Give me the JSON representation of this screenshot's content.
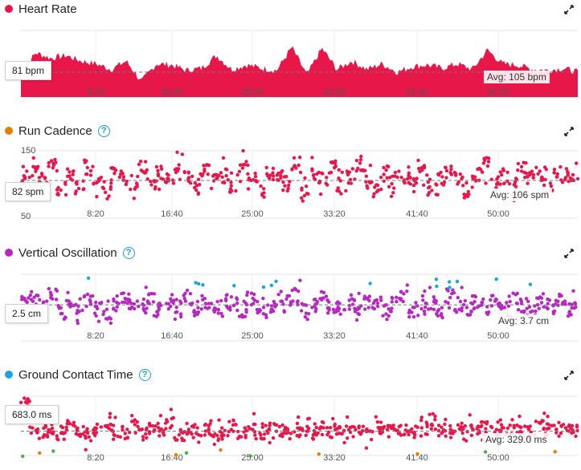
{
  "colors": {
    "heart_rate": "#e8174a",
    "run_cadence": "#e67e00",
    "vertical_oscillation": "#b628c0",
    "ground_contact_time": "#1aa6dc",
    "points_red": "#e8174a",
    "points_purple": "#b628c0",
    "points_blue": "#1aa6dc",
    "points_green": "#4caf50",
    "points_orange": "#e67e00",
    "help": "#1a9bd7"
  },
  "icons": {
    "help": "help-circle-icon",
    "expand": "expand-arrows-icon"
  },
  "x_ticks": [
    "8:20",
    "16:40",
    "25:00",
    "33:20",
    "41:40",
    "50:00"
  ],
  "panels": {
    "heart_rate": {
      "title": "Heart Rate",
      "current": "81 bpm",
      "avg": "Avg: 105 bpm"
    },
    "run_cadence": {
      "title": "Run Cadence",
      "current": "82 spm",
      "avg": "Avg: 106 spm",
      "y_top": "150",
      "y_bottom": "50"
    },
    "vertical_oscillation": {
      "title": "Vertical Oscillation",
      "current": "2.5 cm",
      "avg": "Avg: 3.7 cm"
    },
    "ground_contact_time": {
      "title": "Ground Contact Time",
      "current": "683.0 ms",
      "avg": "Avg: 329.0 ms"
    }
  },
  "chart_data": [
    {
      "type": "area",
      "title": "Heart Rate",
      "ylabel": "bpm",
      "x_unit": "elapsed time (mm:ss)",
      "avg": 105,
      "current": 81,
      "ylim": [
        60,
        180
      ],
      "x": [
        0,
        100,
        200,
        300,
        400,
        500,
        600,
        700,
        800,
        900,
        1000,
        1100,
        1200,
        1300,
        1400,
        1500,
        1600,
        1700,
        1800,
        1900,
        2000,
        2100,
        2200,
        2300,
        2400,
        2500,
        2600,
        2700,
        2800,
        2900,
        3000,
        3100,
        3200,
        3300,
        3400,
        3500,
        3600,
        3700
      ],
      "y": [
        105,
        140,
        130,
        135,
        125,
        120,
        110,
        125,
        88,
        120,
        118,
        108,
        112,
        135,
        110,
        118,
        112,
        108,
        150,
        100,
        148,
        110,
        125,
        110,
        120,
        105,
        115,
        118,
        112,
        120,
        110,
        145,
        120,
        118,
        110,
        108,
        112,
        105
      ]
    },
    {
      "type": "scatter",
      "title": "Run Cadence",
      "ylabel": "spm",
      "avg": 106,
      "current": 82,
      "ylim": [
        50,
        150
      ],
      "x": [
        0,
        60,
        120,
        180,
        240,
        300,
        360,
        420,
        480,
        540,
        600,
        660,
        720,
        780,
        840,
        900,
        960,
        1020,
        1080,
        1140,
        1200,
        1260,
        1320,
        1380,
        1440,
        1500,
        1560,
        1620,
        1680,
        1740,
        1800,
        1860,
        1920,
        1980,
        2040,
        2100,
        2160,
        2220,
        2280,
        2340,
        2400,
        2460,
        2520,
        2580,
        2640,
        2700,
        2760,
        2820,
        2880,
        2940,
        3000,
        3060,
        3120,
        3180,
        3240,
        3300,
        3360,
        3420,
        3480,
        3540,
        3600,
        3660
      ],
      "y": [
        110,
        120,
        105,
        130,
        95,
        115,
        100,
        125,
        108,
        90,
        118,
        112,
        102,
        128,
        98,
        116,
        104,
        122,
        110,
        94,
        120,
        106,
        114,
        100,
        124,
        108,
        96,
        118,
        112,
        102,
        130,
        92,
        116,
        106,
        122,
        98,
        112,
        126,
        104,
        90,
        118,
        108,
        114,
        100,
        124,
        96,
        110,
        120,
        106,
        94,
        116,
        128,
        102,
        112,
        98,
        122,
        108,
        118,
        100,
        114,
        110,
        106
      ]
    },
    {
      "type": "scatter",
      "title": "Vertical Oscillation",
      "ylabel": "cm",
      "avg": 3.7,
      "current": 2.5,
      "ylim": [
        1,
        6
      ],
      "x": [
        0,
        60,
        120,
        180,
        240,
        300,
        360,
        420,
        480,
        540,
        600,
        660,
        720,
        780,
        840,
        900,
        960,
        1020,
        1080,
        1140,
        1200,
        1260,
        1320,
        1380,
        1440,
        1500,
        1560,
        1620,
        1680,
        1740,
        1800,
        1860,
        1920,
        1980,
        2040,
        2100,
        2160,
        2220,
        2280,
        2340,
        2400,
        2460,
        2520,
        2580,
        2640,
        2700,
        2760,
        2820,
        2880,
        2940,
        3000,
        3060,
        3120,
        3180,
        3240,
        3300,
        3360,
        3420,
        3480,
        3540,
        3600,
        3660
      ],
      "y": [
        3.8,
        4.2,
        3.5,
        4.6,
        3.2,
        3.9,
        3.6,
        4.1,
        3.4,
        2.9,
        3.8,
        4.4,
        3.5,
        3.7,
        4.0,
        3.3,
        3.9,
        3.6,
        4.3,
        3.1,
        3.8,
        3.5,
        4.0,
        3.7,
        3.4,
        4.2,
        3.6,
        3.3,
        3.9,
        3.8,
        4.5,
        3.2,
        3.7,
        4.1,
        3.5,
        3.6,
        3.9,
        3.4,
        4.0,
        3.7,
        3.3,
        3.8,
        4.2,
        3.5,
        3.6,
        3.9,
        3.4,
        4.4,
        3.7,
        3.5,
        3.8,
        3.6,
        4.1,
        3.3,
        3.9,
        3.7,
        3.5,
        4.0,
        3.6,
        3.8,
        3.4,
        3.7
      ]
    },
    {
      "type": "scatter",
      "title": "Ground Contact Time",
      "ylabel": "ms",
      "avg": 329,
      "current": 683,
      "ylim": [
        0,
        800
      ],
      "x": [
        0,
        60,
        120,
        180,
        240,
        300,
        360,
        420,
        480,
        540,
        600,
        660,
        720,
        780,
        840,
        900,
        960,
        1020,
        1080,
        1140,
        1200,
        1260,
        1320,
        1380,
        1440,
        1500,
        1560,
        1620,
        1680,
        1740,
        1800,
        1860,
        1920,
        1980,
        2040,
        2100,
        2160,
        2220,
        2280,
        2340,
        2400,
        2460,
        2520,
        2580,
        2640,
        2700,
        2760,
        2820,
        2880,
        2940,
        3000,
        3060,
        3120,
        3180,
        3240,
        3300,
        3360,
        3420,
        3480,
        3540,
        3600,
        3660
      ],
      "y": [
        683,
        380,
        320,
        360,
        300,
        410,
        340,
        290,
        350,
        470,
        330,
        310,
        390,
        280,
        360,
        340,
        420,
        300,
        350,
        330,
        370,
        290,
        340,
        400,
        320,
        360,
        300,
        380,
        340,
        310,
        350,
        420,
        290,
        360,
        330,
        380,
        310,
        350,
        300,
        390,
        340,
        320,
        370,
        300,
        360,
        450,
        330,
        310,
        380,
        340,
        300,
        360,
        330,
        410,
        320,
        350,
        300,
        380,
        340,
        330,
        360,
        320
      ]
    }
  ]
}
